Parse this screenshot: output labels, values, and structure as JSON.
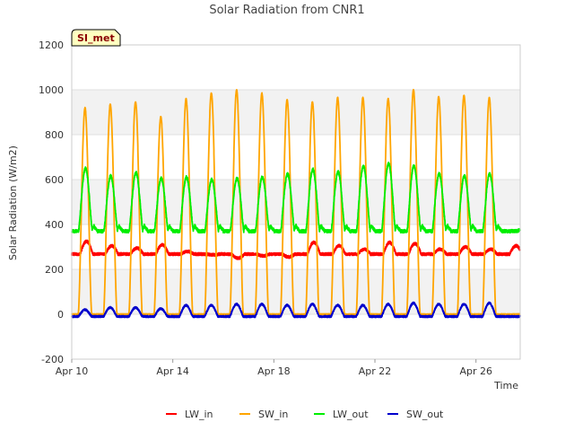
{
  "chart_data": {
    "type": "line",
    "title": "Solar Radiation from CNR1",
    "xlabel": "Time",
    "ylabel": "Solar Radiation (W/m2)",
    "badge": "SI_met",
    "xlim": [
      "2024-04-10",
      "2024-04-27T18:00"
    ],
    "ylim": [
      -200,
      1200
    ],
    "x_tick_dates": [
      "2024-04-10",
      "2024-04-14",
      "2024-04-18",
      "2024-04-22",
      "2024-04-26"
    ],
    "x_tick_labels": [
      "Apr 10",
      "Apr 14",
      "Apr 18",
      "Apr 22",
      "Apr 26"
    ],
    "y_ticks": [
      -200,
      0,
      200,
      400,
      600,
      800,
      1000,
      1200
    ],
    "grid": true,
    "legend_position": "bottom",
    "days": [
      "2024-04-10",
      "2024-04-11",
      "2024-04-12",
      "2024-04-13",
      "2024-04-14",
      "2024-04-15",
      "2024-04-16",
      "2024-04-17",
      "2024-04-18",
      "2024-04-19",
      "2024-04-20",
      "2024-04-21",
      "2024-04-22",
      "2024-04-23",
      "2024-04-24",
      "2024-04-25",
      "2024-04-26",
      "2024-04-27"
    ],
    "series": [
      {
        "name": "LW_in",
        "color": "#ff0000",
        "daily_peak": [
          325,
          305,
          295,
          310,
          280,
          265,
          250,
          260,
          255,
          320,
          305,
          290,
          320,
          315,
          290,
          300,
          290,
          305
        ],
        "night_base": 268
      },
      {
        "name": "SW_in",
        "color": "#ffa500",
        "daily_peak": [
          920,
          935,
          945,
          880,
          960,
          985,
          1000,
          985,
          955,
          945,
          965,
          965,
          960,
          1000,
          970,
          975,
          965,
          0
        ],
        "night_base": 0
      },
      {
        "name": "LW_out",
        "color": "#00ee00",
        "daily_peak": [
          650,
          615,
          630,
          605,
          610,
          600,
          605,
          610,
          625,
          645,
          635,
          660,
          670,
          660,
          625,
          615,
          625,
          0
        ],
        "night_base": 370
      },
      {
        "name": "SW_out",
        "color": "#0000cc",
        "daily_peak": [
          20,
          30,
          30,
          25,
          40,
          40,
          45,
          45,
          40,
          45,
          40,
          40,
          45,
          50,
          45,
          45,
          50,
          0
        ],
        "night_base": -10
      }
    ]
  }
}
